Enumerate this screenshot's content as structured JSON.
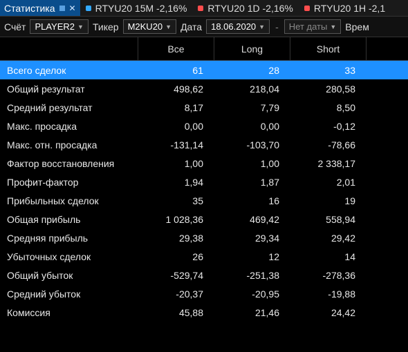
{
  "colors": {
    "accent": "#1e90ff",
    "tab_bg": "#0a4d8c",
    "dot_blue": "#33aaff",
    "dot_red": "#ff4d4d"
  },
  "tabs": {
    "stat_label": "Статистика",
    "items": [
      {
        "text": "RTYU20 15M -2,16%",
        "dot": "#33aaff"
      },
      {
        "text": "RTYU20 1D -2,16%",
        "dot": "#ff4d4d"
      },
      {
        "text": "RTYU20 1H -2,1",
        "dot": "#ff4d4d"
      }
    ]
  },
  "toolbar": {
    "account_label": "Счёт",
    "account_value": "PLAYER2",
    "ticker_label": "Тикер",
    "ticker_value": "M2KU20",
    "date_label": "Дата",
    "date_from": "18.06.2020",
    "date_to": "Нет даты",
    "time_label": "Врем"
  },
  "table": {
    "columns": [
      "Все",
      "Long",
      "Short"
    ],
    "rows": [
      {
        "label": "Всего сделок",
        "v": [
          "61",
          "28",
          "33"
        ],
        "sel": true
      },
      {
        "label": "Общий результат",
        "v": [
          "498,62",
          "218,04",
          "280,58"
        ]
      },
      {
        "label": "Средний результат",
        "v": [
          "8,17",
          "7,79",
          "8,50"
        ]
      },
      {
        "label": "Макс. просадка",
        "v": [
          "0,00",
          "0,00",
          "-0,12"
        ]
      },
      {
        "label": "Макс. отн. просадка",
        "v": [
          "-131,14",
          "-103,70",
          "-78,66"
        ]
      },
      {
        "label": "Фактор восстановления",
        "v": [
          "1,00",
          "1,00",
          "2 338,17"
        ]
      },
      {
        "label": "Профит-фактор",
        "v": [
          "1,94",
          "1,87",
          "2,01"
        ]
      },
      {
        "label": "Прибыльных сделок",
        "v": [
          "35",
          "16",
          "19"
        ]
      },
      {
        "label": "Общая прибыль",
        "v": [
          "1 028,36",
          "469,42",
          "558,94"
        ]
      },
      {
        "label": "Средняя прибыль",
        "v": [
          "29,38",
          "29,34",
          "29,42"
        ]
      },
      {
        "label": "Убыточных сделок",
        "v": [
          "26",
          "12",
          "14"
        ]
      },
      {
        "label": "Общий убыток",
        "v": [
          "-529,74",
          "-251,38",
          "-278,36"
        ]
      },
      {
        "label": "Средний убыток",
        "v": [
          "-20,37",
          "-20,95",
          "-19,88"
        ]
      },
      {
        "label": "Комиссия",
        "v": [
          "45,88",
          "21,46",
          "24,42"
        ]
      }
    ]
  }
}
